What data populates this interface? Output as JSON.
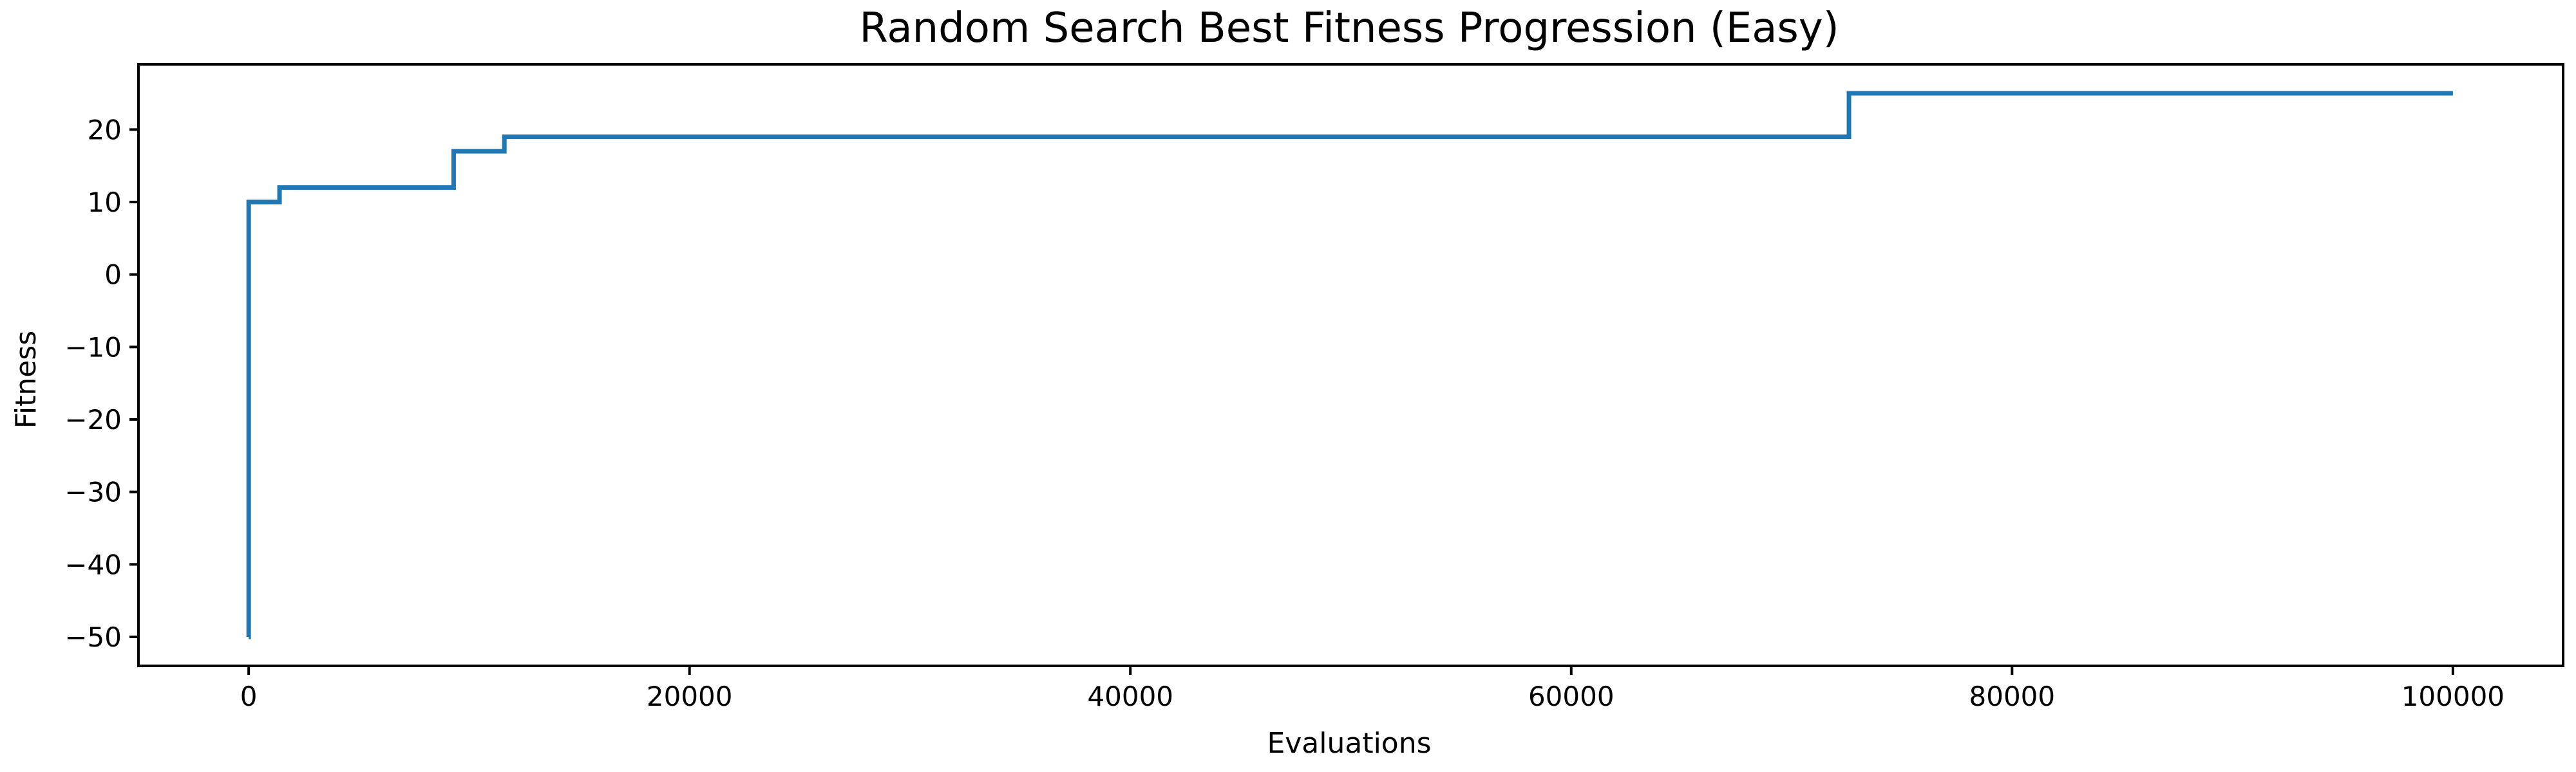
{
  "chart_data": {
    "type": "line",
    "step": "post",
    "title": "Random Search Best Fitness Progression (Easy)",
    "xlabel": "Evaluations",
    "ylabel": "Fitness",
    "xlim": [
      -5000,
      105000
    ],
    "ylim": [
      -54,
      29
    ],
    "xticks": [
      0,
      20000,
      40000,
      60000,
      80000,
      100000
    ],
    "xtick_labels": [
      "0",
      "20000",
      "40000",
      "60000",
      "80000",
      "100000"
    ],
    "yticks": [
      -50,
      -40,
      -30,
      -20,
      -10,
      0,
      10,
      20
    ],
    "ytick_labels": [
      "−50",
      "−40",
      "−30",
      "−20",
      "−10",
      "0",
      "10",
      "20"
    ],
    "grid": false,
    "series": [
      {
        "color": "#1f77b4",
        "x": [
          0,
          1,
          1400,
          9300,
          11600,
          72600,
          100000
        ],
        "y": [
          -50,
          10,
          12,
          17,
          19,
          25,
          25
        ]
      }
    ]
  }
}
